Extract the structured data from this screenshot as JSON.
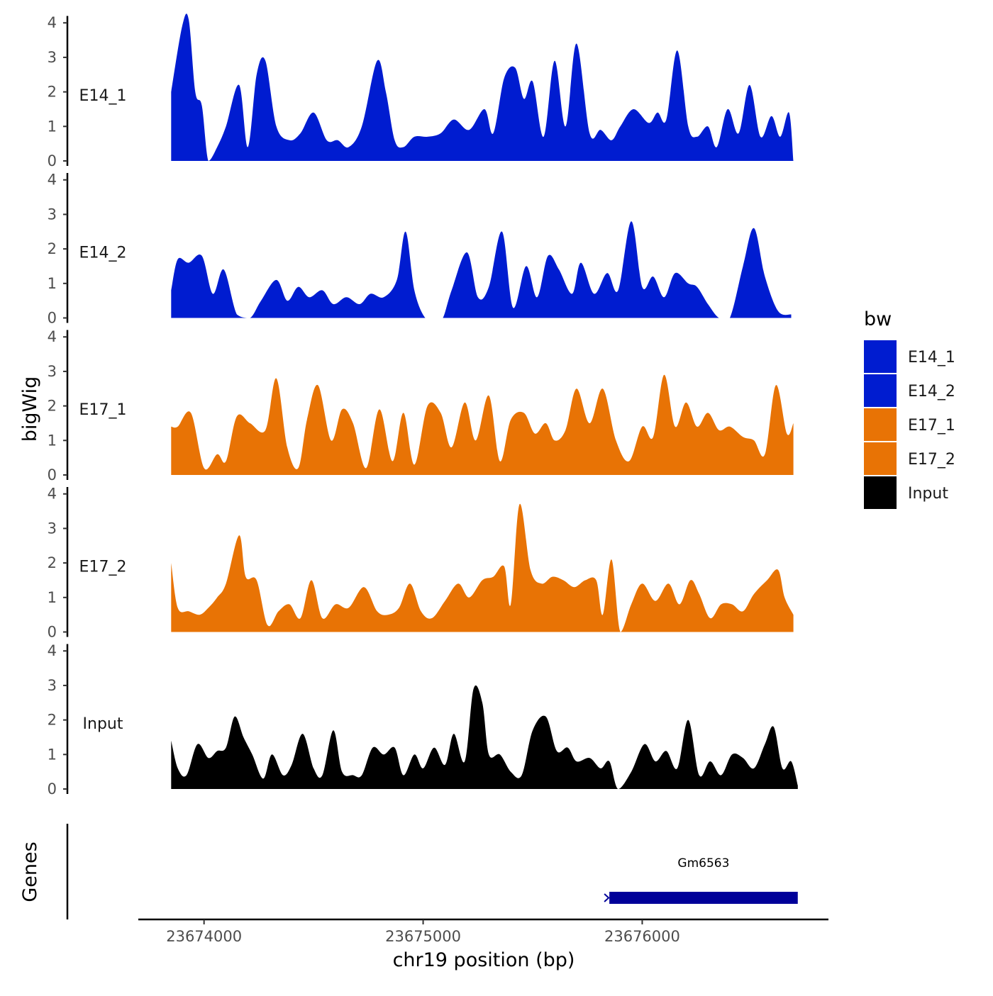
{
  "chart_data": {
    "type": "area",
    "title": "",
    "xlabel": "chr19 position (bp)",
    "ylabel": "bigWig",
    "genes_label": "Genes",
    "xlim": [
      23673700,
      23676850
    ],
    "ylim": [
      0,
      4.2
    ],
    "y_ticks": [
      0,
      1,
      2,
      3,
      4
    ],
    "x_ticks": [
      {
        "value": 23674000,
        "label": "23674000"
      },
      {
        "value": 23675000,
        "label": "23675000"
      },
      {
        "value": 23676000,
        "label": "23676000"
      }
    ],
    "legend": {
      "title": "bw",
      "items": [
        {
          "label": "E14_1",
          "color": "#001CD0"
        },
        {
          "label": "E14_2",
          "color": "#001CD0"
        },
        {
          "label": "E17_1",
          "color": "#E87305"
        },
        {
          "label": "E17_2",
          "color": "#E87305"
        },
        {
          "label": "Input",
          "color": "#000000"
        }
      ]
    },
    "series": [
      {
        "name": "E14_1",
        "label": "E14_1",
        "color": "#001CD0",
        "x": [
          23673850,
          23673900,
          23673930,
          23673960,
          23673990,
          23674020,
          23674060,
          23674100,
          23674160,
          23674200,
          23674240,
          23674280,
          23674330,
          23674390,
          23674440,
          23674500,
          23674560,
          23674610,
          23674660,
          23674720,
          23674790,
          23674830,
          23674870,
          23674910,
          23674960,
          23675020,
          23675080,
          23675140,
          23675210,
          23675280,
          23675320,
          23675370,
          23675420,
          23675460,
          23675500,
          23675550,
          23675600,
          23675650,
          23675700,
          23675760,
          23675810,
          23675860,
          23675900,
          23675960,
          23676030,
          23676070,
          23676110,
          23676160,
          23676210,
          23676250,
          23676300,
          23676340,
          23676390,
          23676440,
          23676490,
          23676540,
          23676590,
          23676630,
          23676670,
          23676690
        ],
        "values": [
          2.0,
          3.9,
          4.1,
          2.0,
          1.6,
          0.0,
          0.4,
          1.0,
          2.2,
          0.4,
          2.5,
          2.9,
          1.0,
          0.6,
          0.8,
          1.4,
          0.6,
          0.6,
          0.4,
          1.0,
          2.9,
          2.0,
          0.6,
          0.4,
          0.7,
          0.7,
          0.8,
          1.2,
          0.9,
          1.5,
          0.8,
          2.4,
          2.7,
          1.8,
          2.3,
          0.7,
          2.9,
          1.0,
          3.4,
          0.8,
          0.9,
          0.6,
          1.0,
          1.5,
          1.1,
          1.4,
          1.2,
          3.2,
          1.0,
          0.7,
          1.0,
          0.4,
          1.5,
          0.8,
          2.2,
          0.7,
          1.3,
          0.7,
          1.4,
          0.0
        ]
      },
      {
        "name": "E14_2",
        "label": "E14_2",
        "color": "#001CD0",
        "x": [
          23673850,
          23673880,
          23673930,
          23673990,
          23674040,
          23674090,
          23674150,
          23674210,
          23674260,
          23674330,
          23674380,
          23674430,
          23674480,
          23674540,
          23674590,
          23674650,
          23674710,
          23674760,
          23674820,
          23674880,
          23674920,
          23674960,
          23675010,
          23675060,
          23675090,
          23675130,
          23675200,
          23675250,
          23675300,
          23675360,
          23675410,
          23675470,
          23675520,
          23675570,
          23675620,
          23675680,
          23675720,
          23675780,
          23675840,
          23675890,
          23675950,
          23676000,
          23676050,
          23676100,
          23676150,
          23676210,
          23676250,
          23676300,
          23676350,
          23676400,
          23676460,
          23676510,
          23676560,
          23676620,
          23676680
        ],
        "values": [
          0.8,
          1.7,
          1.6,
          1.8,
          0.7,
          1.4,
          0.1,
          0.0,
          0.5,
          1.1,
          0.5,
          0.9,
          0.6,
          0.8,
          0.4,
          0.6,
          0.4,
          0.7,
          0.6,
          1.1,
          2.5,
          0.8,
          0.0,
          0.0,
          0.0,
          0.8,
          1.9,
          0.6,
          0.9,
          2.5,
          0.3,
          1.5,
          0.6,
          1.8,
          1.4,
          0.7,
          1.6,
          0.7,
          1.3,
          0.8,
          2.8,
          0.9,
          1.2,
          0.6,
          1.3,
          1.0,
          0.9,
          0.4,
          0.0,
          0.0,
          1.5,
          2.6,
          1.2,
          0.2,
          0.1
        ]
      },
      {
        "name": "E17_1",
        "label": "E17_1",
        "color": "#E87305",
        "x": [
          23673850,
          23673880,
          23673940,
          23674000,
          23674060,
          23674100,
          23674150,
          23674210,
          23674280,
          23674330,
          23674380,
          23674430,
          23674470,
          23674520,
          23674580,
          23674630,
          23674680,
          23674740,
          23674800,
          23674860,
          23674910,
          23674960,
          23675020,
          23675080,
          23675130,
          23675190,
          23675240,
          23675300,
          23675350,
          23675400,
          23675460,
          23675510,
          23675560,
          23675600,
          23675650,
          23675700,
          23675760,
          23675820,
          23675880,
          23675940,
          23676000,
          23676050,
          23676100,
          23676150,
          23676200,
          23676250,
          23676300,
          23676350,
          23676400,
          23676460,
          23676510,
          23676560,
          23676610,
          23676660,
          23676690
        ],
        "values": [
          1.4,
          1.4,
          1.8,
          0.2,
          0.6,
          0.4,
          1.7,
          1.5,
          1.3,
          2.8,
          0.8,
          0.2,
          1.6,
          2.6,
          1.0,
          1.9,
          1.5,
          0.2,
          1.9,
          0.4,
          1.8,
          0.3,
          2.0,
          1.8,
          0.8,
          2.1,
          1.0,
          2.3,
          0.4,
          1.6,
          1.8,
          1.2,
          1.5,
          1.0,
          1.3,
          2.5,
          1.5,
          2.5,
          1.0,
          0.4,
          1.4,
          1.1,
          2.9,
          1.4,
          2.1,
          1.4,
          1.8,
          1.3,
          1.4,
          1.1,
          1.0,
          0.6,
          2.6,
          1.2,
          1.5
        ]
      },
      {
        "name": "E17_2",
        "label": "E17_2",
        "color": "#E87305",
        "x": [
          23673850,
          23673880,
          23673930,
          23673980,
          23674020,
          23674060,
          23674100,
          23674160,
          23674190,
          23674240,
          23674290,
          23674340,
          23674390,
          23674440,
          23674490,
          23674540,
          23674600,
          23674660,
          23674730,
          23674790,
          23674840,
          23674890,
          23674940,
          23674990,
          23675040,
          23675100,
          23675160,
          23675210,
          23675270,
          23675320,
          23675370,
          23675400,
          23675440,
          23675490,
          23675540,
          23675590,
          23675640,
          23675690,
          23675740,
          23675790,
          23675820,
          23675860,
          23675900,
          23675950,
          23676000,
          23676060,
          23676120,
          23676170,
          23676220,
          23676260,
          23676310,
          23676360,
          23676410,
          23676460,
          23676510,
          23676570,
          23676620,
          23676650,
          23676690
        ],
        "values": [
          2.0,
          0.7,
          0.6,
          0.5,
          0.7,
          1.0,
          1.4,
          2.8,
          1.6,
          1.5,
          0.2,
          0.6,
          0.8,
          0.4,
          1.5,
          0.4,
          0.8,
          0.7,
          1.3,
          0.6,
          0.5,
          0.7,
          1.4,
          0.6,
          0.4,
          0.9,
          1.4,
          1.0,
          1.5,
          1.6,
          1.9,
          0.8,
          3.7,
          1.8,
          1.4,
          1.6,
          1.5,
          1.3,
          1.5,
          1.5,
          0.5,
          2.1,
          0.0,
          0.8,
          1.4,
          0.9,
          1.4,
          0.8,
          1.5,
          1.1,
          0.4,
          0.8,
          0.8,
          0.6,
          1.1,
          1.5,
          1.8,
          1.0,
          0.5
        ]
      },
      {
        "name": "Input",
        "label": "Input",
        "color": "#000000",
        "x": [
          23673850,
          23673880,
          23673920,
          23673970,
          23674020,
          23674060,
          23674100,
          23674140,
          23674180,
          23674220,
          23674270,
          23674310,
          23674360,
          23674400,
          23674450,
          23674500,
          23674540,
          23674590,
          23674630,
          23674680,
          23674720,
          23674770,
          23674820,
          23674870,
          23674910,
          23674960,
          23675000,
          23675050,
          23675100,
          23675140,
          23675190,
          23675230,
          23675270,
          23675300,
          23675350,
          23675400,
          23675450,
          23675500,
          23675560,
          23675610,
          23675660,
          23675700,
          23675760,
          23675810,
          23675850,
          23675890,
          23675950,
          23676010,
          23676060,
          23676110,
          23676160,
          23676210,
          23676260,
          23676310,
          23676360,
          23676410,
          23676460,
          23676510,
          23676560,
          23676600,
          23676640,
          23676680,
          23676710
        ],
        "values": [
          1.4,
          0.6,
          0.4,
          1.3,
          0.9,
          1.1,
          1.2,
          2.1,
          1.5,
          1.0,
          0.3,
          1.0,
          0.4,
          0.7,
          1.6,
          0.6,
          0.4,
          1.7,
          0.5,
          0.4,
          0.4,
          1.2,
          1.0,
          1.2,
          0.4,
          1.0,
          0.6,
          1.2,
          0.7,
          1.6,
          0.8,
          2.9,
          2.5,
          1.0,
          1.0,
          0.5,
          0.4,
          1.7,
          2.1,
          1.1,
          1.2,
          0.8,
          0.9,
          0.6,
          0.8,
          0.0,
          0.5,
          1.3,
          0.8,
          1.1,
          0.6,
          2.0,
          0.4,
          0.8,
          0.4,
          1.0,
          0.9,
          0.6,
          1.3,
          1.8,
          0.6,
          0.8,
          0.1
        ]
      }
    ],
    "genes": [
      {
        "name": "Gm6563",
        "start": 23675850,
        "end": 23676710,
        "color": "#000099"
      }
    ]
  }
}
